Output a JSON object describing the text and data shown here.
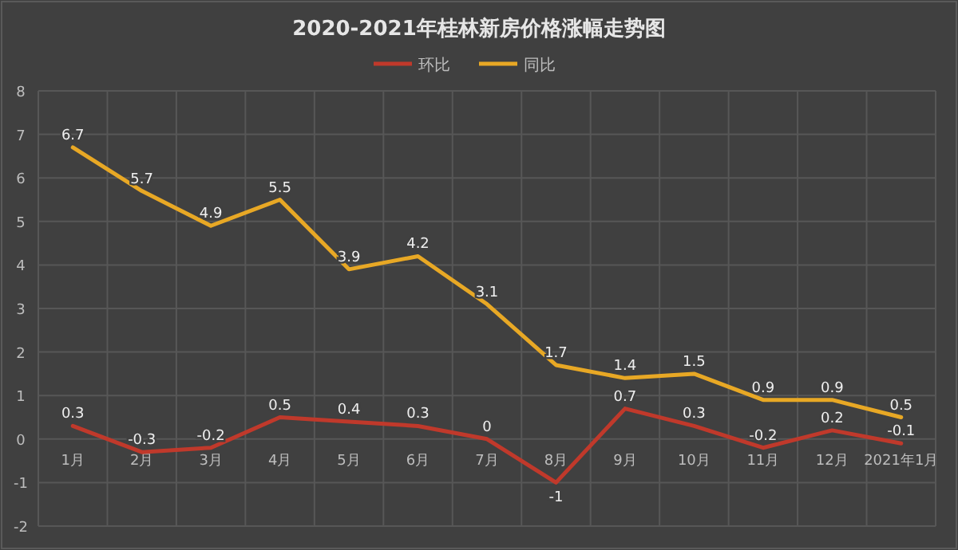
{
  "chart_data": {
    "type": "line",
    "title": "2020-2021年桂林新房价格涨幅走势图",
    "categories": [
      "1月",
      "2月",
      "3月",
      "4月",
      "5月",
      "6月",
      "7月",
      "8月",
      "9月",
      "10月",
      "11月",
      "12月",
      "2021年1月"
    ],
    "series": [
      {
        "name": "环比",
        "color": "#c0392b",
        "values": [
          0.3,
          -0.3,
          -0.2,
          0.5,
          0.4,
          0.3,
          0,
          -1,
          0.7,
          0.3,
          -0.2,
          0.2,
          -0.1
        ]
      },
      {
        "name": "同比",
        "color": "#e8a825",
        "values": [
          6.7,
          5.7,
          4.9,
          5.5,
          3.9,
          4.2,
          3.1,
          1.7,
          1.4,
          1.5,
          0.9,
          0.9,
          0.5
        ]
      }
    ],
    "ylim": [
      -2,
      8
    ],
    "yticks": [
      -2,
      -1,
      0,
      1,
      2,
      3,
      4,
      5,
      6,
      7,
      8
    ],
    "grid": true,
    "legend": "top",
    "data_labels": true,
    "marker": "none",
    "line_style": "solid"
  }
}
